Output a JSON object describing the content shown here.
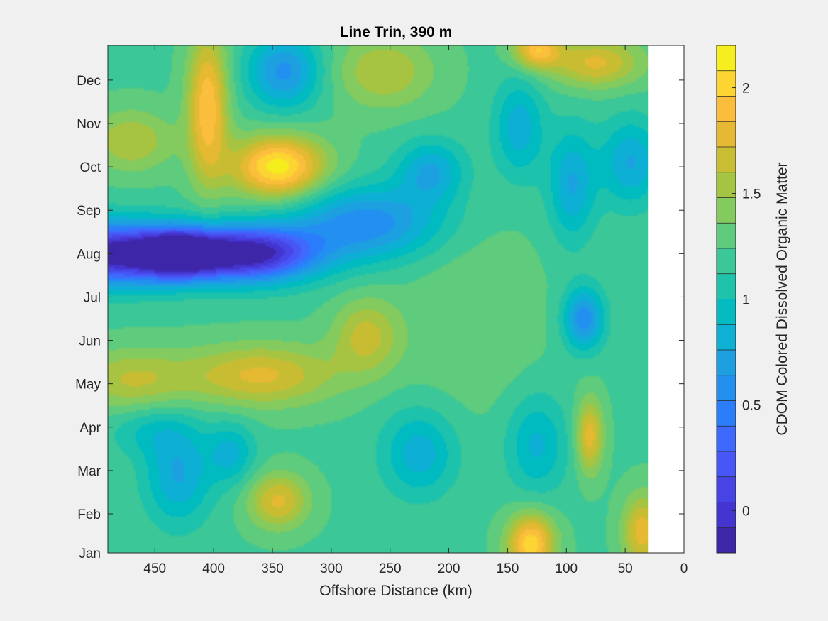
{
  "chart_data": {
    "type": "heatmap",
    "title": "Line Trin, 390 m",
    "xlabel": "Offshore Distance (km)",
    "ylabel": "",
    "colorbar_label": "CDOM Colored Dissolved Organic Matter",
    "xlim": [
      490,
      0
    ],
    "x_reversed": true,
    "xticks": [
      450,
      400,
      350,
      300,
      250,
      200,
      150,
      100,
      50,
      0
    ],
    "ylim": [
      1,
      12.7
    ],
    "ytick_labels": [
      "Jan",
      "Feb",
      "Mar",
      "Apr",
      "May",
      "Jun",
      "Jul",
      "Aug",
      "Sep",
      "Oct",
      "Nov",
      "Dec"
    ],
    "ytick_positions": [
      1,
      1.9,
      2.9,
      3.9,
      4.9,
      5.9,
      6.9,
      7.9,
      8.9,
      9.9,
      10.9,
      11.9
    ],
    "clim": [
      -0.2,
      2.2
    ],
    "colorbar_ticks": [
      0,
      0.5,
      1,
      1.5,
      2
    ],
    "data_x_extent": [
      490,
      30
    ],
    "grid": false,
    "blobs": [
      {
        "x": 490,
        "y": 7.9,
        "v": -0.15,
        "sx": 40,
        "sy": 0.5
      },
      {
        "x": 370,
        "y": 7.9,
        "v": -0.2,
        "sx": 40,
        "sy": 0.45
      },
      {
        "x": 430,
        "y": 7.9,
        "v": 0.0,
        "sx": 25,
        "sy": 0.4
      },
      {
        "x": 270,
        "y": 8.6,
        "v": 0.55,
        "sx": 45,
        "sy": 0.6
      },
      {
        "x": 345,
        "y": 9.9,
        "v": 2.15,
        "sx": 28,
        "sy": 0.5
      },
      {
        "x": 405,
        "y": 11.3,
        "v": 1.95,
        "sx": 12,
        "sy": 1.2
      },
      {
        "x": 340,
        "y": 12.1,
        "v": 0.6,
        "sx": 22,
        "sy": 0.6
      },
      {
        "x": 360,
        "y": 5.1,
        "v": 1.75,
        "sx": 45,
        "sy": 0.5
      },
      {
        "x": 470,
        "y": 5.0,
        "v": 1.6,
        "sx": 35,
        "sy": 0.5
      },
      {
        "x": 270,
        "y": 6.0,
        "v": 1.65,
        "sx": 20,
        "sy": 0.6
      },
      {
        "x": 225,
        "y": 3.3,
        "v": 0.8,
        "sx": 22,
        "sy": 0.7
      },
      {
        "x": 125,
        "y": 3.5,
        "v": 0.85,
        "sx": 18,
        "sy": 0.8
      },
      {
        "x": 85,
        "y": 6.4,
        "v": 0.55,
        "sx": 12,
        "sy": 0.5
      },
      {
        "x": 80,
        "y": 3.7,
        "v": 1.8,
        "sx": 8,
        "sy": 0.6
      },
      {
        "x": 130,
        "y": 1.2,
        "v": 2.05,
        "sx": 14,
        "sy": 0.5
      },
      {
        "x": 345,
        "y": 2.2,
        "v": 1.75,
        "sx": 18,
        "sy": 0.45
      },
      {
        "x": 430,
        "y": 2.8,
        "v": 0.75,
        "sx": 20,
        "sy": 0.8
      },
      {
        "x": 215,
        "y": 9.8,
        "v": 0.75,
        "sx": 20,
        "sy": 0.5
      },
      {
        "x": 125,
        "y": 12.6,
        "v": 1.9,
        "sx": 14,
        "sy": 0.3
      },
      {
        "x": 75,
        "y": 12.3,
        "v": 1.75,
        "sx": 28,
        "sy": 0.4
      },
      {
        "x": 45,
        "y": 10.0,
        "v": 0.75,
        "sx": 18,
        "sy": 0.7
      },
      {
        "x": 95,
        "y": 9.5,
        "v": 0.75,
        "sx": 14,
        "sy": 0.9
      },
      {
        "x": 140,
        "y": 10.8,
        "v": 0.8,
        "sx": 15,
        "sy": 0.8
      },
      {
        "x": 470,
        "y": 10.5,
        "v": 1.6,
        "sx": 25,
        "sy": 0.5
      },
      {
        "x": 255,
        "y": 12.1,
        "v": 1.6,
        "sx": 30,
        "sy": 0.6
      },
      {
        "x": 35,
        "y": 1.5,
        "v": 1.8,
        "sx": 12,
        "sy": 0.6
      },
      {
        "x": 385,
        "y": 3.3,
        "v": 0.85,
        "sx": 14,
        "sy": 0.5
      },
      {
        "x": 180,
        "y": 6.5,
        "v": 1.35,
        "sx": 40,
        "sy": 1.5
      },
      {
        "x": 455,
        "y": 3.8,
        "v": 1.0,
        "sx": 25,
        "sy": 0.4
      }
    ],
    "base_value": 1.22,
    "colormap": [
      "#3e26a8",
      "#4435d0",
      "#4744e6",
      "#4756f5",
      "#3f69fd",
      "#2b7dfa",
      "#2390f0",
      "#1ea0e0",
      "#0eb0d4",
      "#03bbc0",
      "#1fc2ab",
      "#3bc797",
      "#5ecb7d",
      "#83ca5f",
      "#a6c443",
      "#c8bd33",
      "#e5b933",
      "#fbbe3c",
      "#fcd532",
      "#f6ee1f"
    ]
  }
}
